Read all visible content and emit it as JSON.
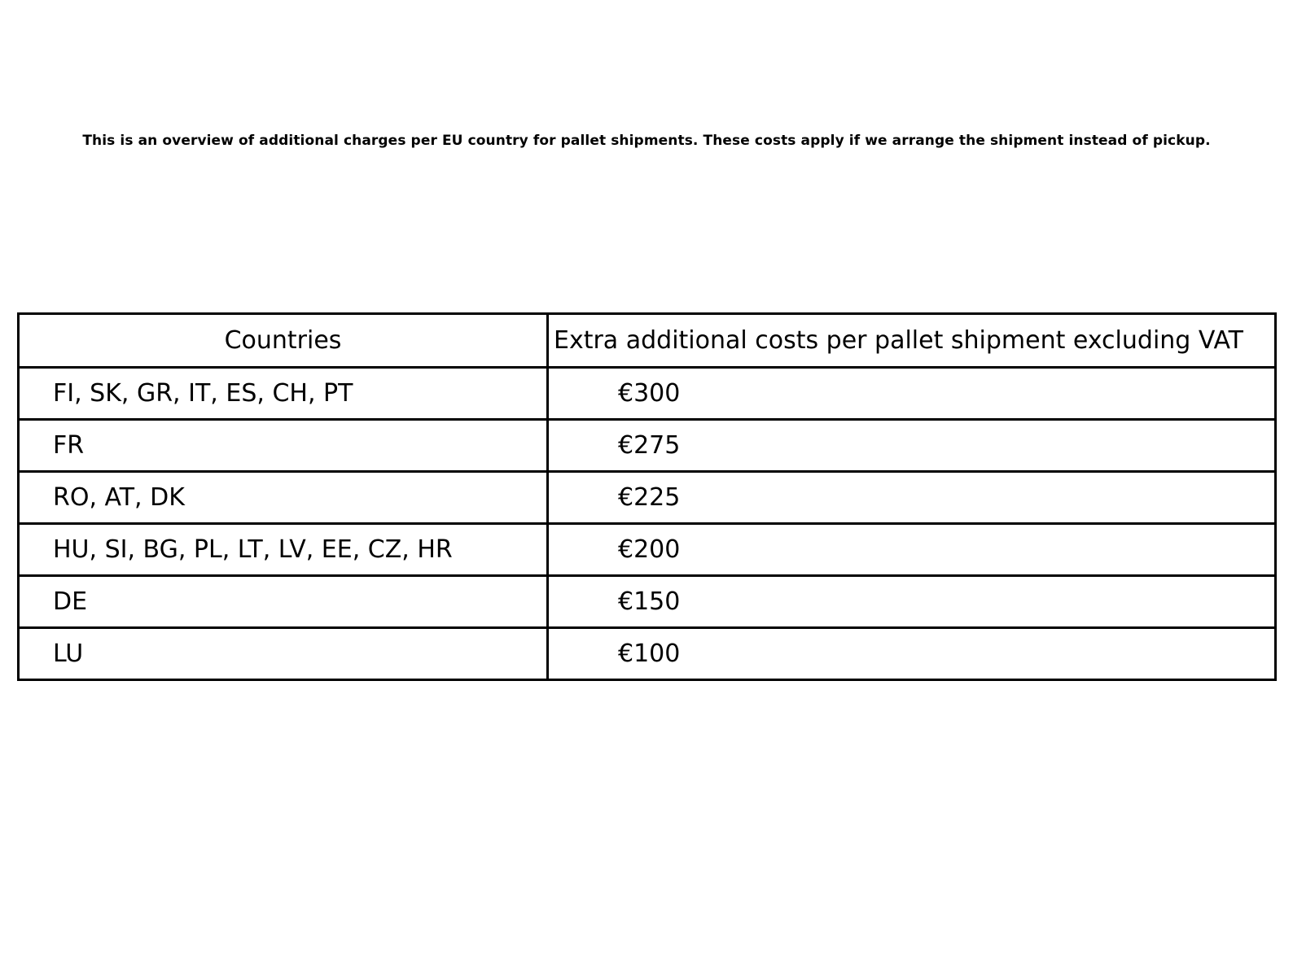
{
  "page": {
    "intro": "This is an overview of additional charges per EU country for pallet shipments. These costs apply if we arrange the shipment instead of pickup."
  },
  "table": {
    "headers": {
      "countries": "Countries",
      "costs": "Extra additional costs per pallet shipment excluding VAT"
    },
    "rows": [
      {
        "countries": "FI, SK, GR, IT, ES, CH, PT",
        "cost": "€300"
      },
      {
        "countries": "FR",
        "cost": "€275"
      },
      {
        "countries": "RO, AT, DK",
        "cost": "€225"
      },
      {
        "countries": "HU, SI, BG, PL, LT, LV, EE, CZ, HR",
        "cost": "€200"
      },
      {
        "countries": "DE",
        "cost": "€150"
      },
      {
        "countries": "LU",
        "cost": "€100"
      }
    ]
  },
  "colors": {
    "background": "#ffffff",
    "text": "#000000",
    "border": "#000000"
  }
}
